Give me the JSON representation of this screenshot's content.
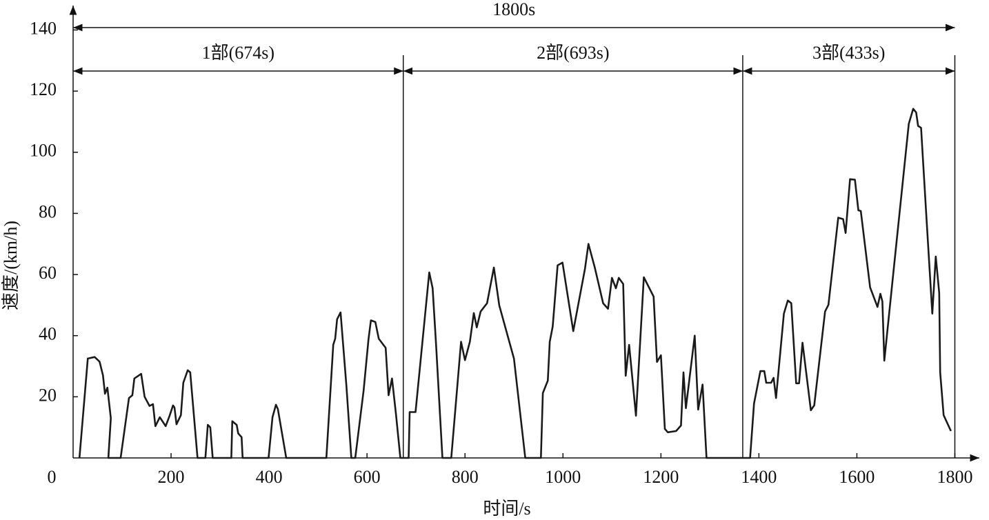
{
  "chart_data": {
    "type": "line",
    "xlabel": "时间/s",
    "ylabel": "速度/(km/h)",
    "xlim": [
      0,
      1850
    ],
    "ylim": [
      0,
      148
    ],
    "xticks": [
      0,
      200,
      400,
      600,
      800,
      1000,
      1200,
      1400,
      1600,
      1800
    ],
    "yticks": [
      20,
      40,
      60,
      80,
      100,
      120,
      140
    ],
    "annotations": {
      "total": {
        "label": "1800s",
        "start": 0,
        "end": 1800
      },
      "parts": [
        {
          "label": "1部(674s)",
          "start": 0,
          "end": 674
        },
        {
          "label": "2部(693s)",
          "start": 674,
          "end": 1367
        },
        {
          "label": "3部(433s)",
          "start": 1367,
          "end": 1800
        }
      ]
    },
    "series": [
      {
        "name": "速度",
        "color": "#1a1a1a",
        "x": [
          13,
          30,
          44,
          54,
          61,
          65,
          70,
          77,
          72,
          97,
          114,
          121,
          125,
          139,
          146,
          156,
          163,
          168,
          177,
          189,
          197,
          204,
          207,
          211,
          220,
          225,
          234,
          239,
          254,
          270,
          275,
          280,
          285,
          323,
          325,
          334,
          337,
          344,
          346,
          399,
          407,
          414,
          418,
          435,
          517,
          531,
          535,
          539,
          546,
          558,
          568,
          576,
          593,
          603,
          608,
          617,
          624,
          638,
          644,
          651,
          659,
          668,
          685,
          687,
          699,
          727,
          734,
          741,
          754,
          772,
          792,
          800,
          810,
          818,
          824,
          832,
          845,
          859,
          870,
          900,
          923,
          955,
          959,
          969,
          973,
          979,
          989,
          999,
          1021,
          1045,
          1052,
          1065,
          1082,
          1092,
          1100,
          1108,
          1114,
          1123,
          1128,
          1135,
          1149,
          1165,
          1185,
          1192,
          1200,
          1208,
          1214,
          1231,
          1241,
          1246,
          1251,
          1269,
          1276,
          1285,
          1293,
          1382,
          1390,
          1403,
          1411,
          1415,
          1425,
          1430,
          1435,
          1451,
          1459,
          1466,
          1476,
          1482,
          1489,
          1506,
          1513,
          1535,
          1542,
          1562,
          1572,
          1577,
          1586,
          1596,
          1603,
          1608,
          1627,
          1642,
          1648,
          1652,
          1656,
          1675,
          1706,
          1715,
          1721,
          1725,
          1731,
          1742,
          1754,
          1761,
          1768,
          1770,
          1777,
          1792
        ],
        "values": [
          0,
          32.5,
          33,
          31.5,
          27,
          21,
          23,
          13,
          0,
          0,
          19.6,
          20.5,
          26,
          27.5,
          20,
          17,
          17.6,
          10.4,
          13.3,
          10.4,
          13.8,
          17.2,
          16.5,
          11,
          14,
          24.6,
          28.7,
          28,
          0,
          0,
          10.8,
          10,
          0,
          0,
          12,
          10.8,
          8,
          6.8,
          0,
          0,
          13.3,
          17.4,
          16,
          0,
          0,
          37,
          39,
          45.4,
          47.6,
          23.5,
          0,
          0,
          22,
          38.8,
          45,
          44.5,
          39,
          36,
          20.5,
          26,
          14.4,
          0,
          0,
          15,
          15,
          60.7,
          55.5,
          37,
          0,
          0,
          38,
          32,
          38,
          47.4,
          42.7,
          47.9,
          50.6,
          62.3,
          49.9,
          32.5,
          0,
          0,
          21.2,
          25.3,
          38,
          43,
          63,
          63.9,
          41.5,
          61.9,
          70,
          62.3,
          50.6,
          48.8,
          58.9,
          55.5,
          58.9,
          56.9,
          26.9,
          37,
          13.8,
          59.1,
          52.8,
          31.4,
          33.6,
          9.5,
          8.4,
          8.8,
          10.6,
          28,
          16.3,
          40,
          15.8,
          24,
          0,
          0,
          17.8,
          28.4,
          28.4,
          24.6,
          24.6,
          26.2,
          19.6,
          47.2,
          51.5,
          50.6,
          24.4,
          24.4,
          37.7,
          15.6,
          17.2,
          47.9,
          50.1,
          78.6,
          78.1,
          73.6,
          91.2,
          91,
          81,
          80.8,
          55.8,
          49.4,
          53.7,
          51.2,
          31.8,
          61.4,
          109.3,
          114.2,
          113,
          108.6,
          108,
          78.6,
          47.2,
          65.9,
          54,
          28,
          14,
          8.8
        ]
      }
    ]
  }
}
